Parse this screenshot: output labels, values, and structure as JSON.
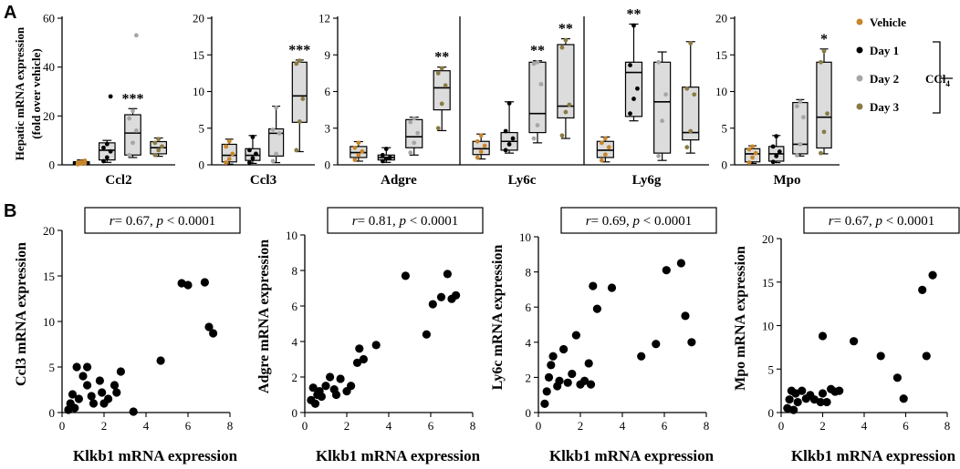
{
  "panels": {
    "a": "A",
    "b": "B"
  },
  "panel_a_ylabel": {
    "line1": "Hepatic mRNA expression",
    "line2": "(fold over vehicle)"
  },
  "legend": {
    "items": [
      {
        "label": "Vehicle",
        "color": "#c8862a"
      },
      {
        "label": "Day 1",
        "color": "#000000"
      },
      {
        "label": "Day 2",
        "color": "#a6a6a6"
      },
      {
        "label": "Day 3",
        "color": "#8a7b45"
      }
    ],
    "group_label": "CCl",
    "group_subscript": "4"
  },
  "colors": {
    "box_fill": "#dcdcdc",
    "point": "#000000"
  },
  "chart_data": [
    {
      "panel": "A",
      "type": "box",
      "title": "Ccl2",
      "ylim": [
        0,
        60
      ],
      "yticks": [
        0,
        20,
        40,
        60
      ],
      "groups": [
        {
          "name": "Vehicle",
          "q1": 0.4,
          "median": 0.8,
          "q3": 1.3,
          "min": 0.1,
          "max": 2.0,
          "points": [
            0.2,
            0.5,
            0.7,
            0.9,
            1.2,
            1.7
          ]
        },
        {
          "name": "Day 1",
          "q1": 2.0,
          "median": 6.0,
          "q3": 9.0,
          "min": 1.0,
          "max": 10.0,
          "points": [
            1.5,
            3.0,
            5.5,
            7.0,
            8.5,
            28.0
          ]
        },
        {
          "name": "Day 2",
          "q1": 4.0,
          "median": 13.0,
          "q3": 20.5,
          "min": 3.0,
          "max": 23.0,
          "points": [
            4.0,
            9.0,
            14.0,
            19.0,
            22.0,
            53.0
          ]
        },
        {
          "name": "Day 3",
          "q1": 4.5,
          "median": 7.0,
          "q3": 9.5,
          "min": 3.5,
          "max": 11.0,
          "points": [
            4.0,
            6.0,
            7.5,
            9.0,
            10.5
          ]
        }
      ],
      "significance": [
        {
          "group": "Day 2",
          "label": "***"
        }
      ]
    },
    {
      "panel": "A",
      "type": "box",
      "title": "Ccl3",
      "ylim": [
        0,
        20
      ],
      "yticks": [
        0,
        5,
        10,
        15,
        20
      ],
      "groups": [
        {
          "name": "Vehicle",
          "q1": 0.4,
          "median": 1.3,
          "q3": 2.8,
          "min": 0.1,
          "max": 3.5,
          "points": [
            0.3,
            0.8,
            1.5,
            2.5,
            3.2
          ]
        },
        {
          "name": "Day 1",
          "q1": 0.6,
          "median": 1.3,
          "q3": 2.2,
          "min": 0.2,
          "max": 4.0,
          "points": [
            0.3,
            0.9,
            1.5,
            2.0,
            3.8
          ]
        },
        {
          "name": "Day 2",
          "q1": 1.2,
          "median": 4.3,
          "q3": 4.9,
          "min": 0.3,
          "max": 8.0,
          "points": [
            0.5,
            1.5,
            4.3,
            4.8,
            7.8
          ]
        },
        {
          "name": "Day 3",
          "q1": 5.8,
          "median": 9.4,
          "q3": 14.0,
          "min": 1.8,
          "max": 14.3,
          "points": [
            2.0,
            5.9,
            9.0,
            13.8,
            14.2
          ]
        }
      ],
      "significance": [
        {
          "group": "Day 3",
          "label": "***"
        }
      ]
    },
    {
      "panel": "A",
      "type": "box",
      "title": "Adgre",
      "ylim": [
        0,
        12
      ],
      "yticks": [
        0,
        3,
        6,
        9,
        12
      ],
      "groups": [
        {
          "name": "Vehicle",
          "q1": 0.6,
          "median": 1.0,
          "q3": 1.5,
          "min": 0.3,
          "max": 1.9,
          "points": [
            0.4,
            0.8,
            1.1,
            1.4,
            1.8
          ]
        },
        {
          "name": "Day 1",
          "q1": 0.4,
          "median": 0.6,
          "q3": 0.8,
          "min": 0.2,
          "max": 1.4,
          "points": [
            0.3,
            0.5,
            0.6,
            0.8,
            1.3
          ]
        },
        {
          "name": "Day 2",
          "q1": 1.4,
          "median": 2.3,
          "q3": 3.7,
          "min": 0.8,
          "max": 3.9,
          "points": [
            1.0,
            1.8,
            2.6,
            3.5,
            3.8
          ]
        },
        {
          "name": "Day 3",
          "q1": 4.5,
          "median": 6.3,
          "q3": 7.7,
          "min": 2.8,
          "max": 8.0,
          "points": [
            3.0,
            5.0,
            6.5,
            7.5,
            7.9
          ]
        }
      ],
      "significance": [
        {
          "group": "Day 3",
          "label": "**"
        }
      ]
    },
    {
      "panel": "A",
      "type": "box",
      "title": "Ly6c",
      "ylim": [
        0,
        10
      ],
      "yticks": [],
      "groups": [
        {
          "name": "Vehicle",
          "q1": 0.7,
          "median": 1.1,
          "q3": 1.6,
          "min": 0.4,
          "max": 2.1,
          "points": [
            0.5,
            0.9,
            1.3,
            1.6,
            2.0
          ]
        },
        {
          "name": "Day 1",
          "q1": 1.0,
          "median": 1.6,
          "q3": 2.2,
          "min": 0.8,
          "max": 4.3,
          "points": [
            1.0,
            1.4,
            1.8,
            2.3,
            4.2
          ]
        },
        {
          "name": "Day 2",
          "q1": 2.2,
          "median": 3.5,
          "q3": 7.0,
          "min": 1.5,
          "max": 7.1,
          "points": [
            1.8,
            2.7,
            5.5,
            6.9,
            7.0
          ]
        },
        {
          "name": "Day 3",
          "q1": 3.2,
          "median": 4.0,
          "q3": 8.2,
          "min": 1.8,
          "max": 8.6,
          "points": [
            2.0,
            3.6,
            4.1,
            8.0,
            8.5
          ]
        }
      ],
      "significance": [
        {
          "group": "Day 2",
          "label": "**"
        },
        {
          "group": "Day 3",
          "label": "**"
        }
      ]
    },
    {
      "panel": "A",
      "type": "box",
      "title": "Ly6g",
      "ylim": [
        0,
        10
      ],
      "yticks": [],
      "groups": [
        {
          "name": "Vehicle",
          "q1": 0.5,
          "median": 1.0,
          "q3": 1.6,
          "min": 0.2,
          "max": 1.9,
          "points": [
            0.3,
            0.7,
            1.2,
            1.5,
            1.8
          ]
        },
        {
          "name": "Day 1",
          "q1": 3.3,
          "median": 6.3,
          "q3": 7.0,
          "min": 3.0,
          "max": 9.6,
          "points": [
            3.5,
            4.5,
            5.2,
            6.8,
            9.5
          ]
        },
        {
          "name": "Day 2",
          "q1": 0.8,
          "median": 4.3,
          "q3": 7.0,
          "min": 0.3,
          "max": 7.7,
          "points": [
            0.6,
            3.0,
            4.8,
            7.0
          ]
        },
        {
          "name": "Day 3",
          "q1": 1.7,
          "median": 2.2,
          "q3": 5.3,
          "min": 0.8,
          "max": 8.4,
          "points": [
            1.2,
            2.3,
            4.8,
            5.2,
            8.3
          ]
        }
      ],
      "significance": [
        {
          "group": "Day 1",
          "label": "**"
        }
      ]
    },
    {
      "panel": "A",
      "type": "box",
      "title": "Mpo",
      "ylim": [
        0,
        20
      ],
      "yticks": [
        0,
        5,
        10,
        15,
        20
      ],
      "groups": [
        {
          "name": "Vehicle",
          "q1": 0.4,
          "median": 1.5,
          "q3": 2.2,
          "min": 0.2,
          "max": 2.6,
          "points": [
            0.3,
            1.0,
            1.6,
            2.1,
            2.5
          ]
        },
        {
          "name": "Day 1",
          "q1": 0.5,
          "median": 1.5,
          "q3": 2.5,
          "min": 0.3,
          "max": 4.0,
          "points": [
            0.4,
            1.2,
            1.8,
            2.5,
            3.9
          ]
        },
        {
          "name": "Day 2",
          "q1": 1.5,
          "median": 2.8,
          "q3": 8.5,
          "min": 1.2,
          "max": 8.9,
          "points": [
            1.3,
            2.8,
            6.5,
            8.0,
            8.6
          ]
        },
        {
          "name": "Day 3",
          "q1": 2.3,
          "median": 6.5,
          "q3": 14.0,
          "min": 1.5,
          "max": 15.8,
          "points": [
            1.6,
            4.5,
            7.0,
            14.0,
            15.5
          ]
        }
      ],
      "significance": [
        {
          "group": "Day 3",
          "label": "*"
        }
      ]
    },
    {
      "panel": "B",
      "type": "scatter",
      "xlabel": "Klkb1 mRNA expression",
      "ylabel": "Ccl3 mRNA expression",
      "xlim": [
        0,
        8
      ],
      "xticks": [
        0,
        2,
        4,
        6,
        8
      ],
      "ylim": [
        0,
        20
      ],
      "yticks": [
        0,
        5,
        10,
        15,
        20
      ],
      "annotation": {
        "r": "0.67",
        "p": "0.0001"
      },
      "x": [
        0.3,
        0.4,
        0.5,
        0.6,
        0.8,
        1.0,
        1.2,
        1.4,
        1.5,
        1.8,
        1.9,
        2.0,
        2.2,
        2.5,
        2.6,
        2.8,
        3.4,
        0.7,
        1.2,
        4.7,
        5.7,
        6.0,
        6.8,
        7.0,
        7.2
      ],
      "y": [
        0.3,
        1.0,
        2.0,
        0.5,
        1.5,
        4.0,
        3.0,
        1.8,
        1.0,
        3.5,
        2.2,
        1.0,
        1.5,
        3.0,
        2.2,
        4.5,
        0.1,
        5.0,
        5.0,
        5.7,
        14.2,
        14.0,
        14.3,
        9.4,
        8.7
      ]
    },
    {
      "panel": "B",
      "type": "scatter",
      "xlabel": "Klkb1 mRNA expression",
      "ylabel": "Adgre mRNA expression",
      "xlim": [
        0,
        8
      ],
      "xticks": [
        0,
        2,
        4,
        6,
        8
      ],
      "ylim": [
        0,
        10
      ],
      "yticks": [
        0,
        2,
        4,
        6,
        8,
        10
      ],
      "annotation": {
        "r": "0.81",
        "p": "0.0001"
      },
      "x": [
        0.3,
        0.4,
        0.5,
        0.6,
        0.7,
        0.8,
        1.0,
        1.2,
        1.4,
        1.5,
        1.7,
        2.0,
        2.2,
        2.5,
        2.8,
        3.4,
        2.6,
        4.8,
        5.8,
        6.1,
        6.5,
        6.8,
        7.0,
        7.2
      ],
      "y": [
        0.7,
        1.4,
        0.5,
        1.0,
        1.2,
        0.9,
        1.5,
        2.0,
        1.3,
        1.0,
        1.9,
        1.2,
        1.5,
        2.8,
        3.0,
        3.8,
        3.6,
        7.7,
        4.4,
        6.1,
        6.5,
        7.8,
        6.4,
        6.6
      ]
    },
    {
      "panel": "B",
      "type": "scatter",
      "xlabel": "Klkb1 mRNA expression",
      "ylabel": "Ly6c mRNA expression",
      "xlim": [
        0,
        8
      ],
      "xticks": [
        0,
        2,
        4,
        6,
        8
      ],
      "ylim": [
        0,
        10
      ],
      "yticks": [
        0,
        2,
        4,
        6,
        8,
        10
      ],
      "annotation": {
        "r": "0.69",
        "p": "0.0001"
      },
      "x": [
        0.3,
        0.4,
        0.5,
        0.6,
        0.7,
        0.9,
        1.0,
        1.2,
        1.4,
        1.6,
        1.8,
        2.0,
        2.2,
        2.4,
        2.6,
        2.8,
        2.5,
        3.5,
        4.9,
        5.6,
        6.1,
        6.8,
        7.0,
        7.3
      ],
      "y": [
        0.5,
        1.2,
        2.0,
        2.7,
        3.2,
        1.5,
        1.8,
        3.6,
        1.7,
        2.2,
        4.4,
        1.6,
        1.8,
        2.8,
        7.2,
        5.9,
        1.6,
        7.1,
        3.2,
        3.9,
        8.1,
        8.5,
        5.5,
        4.0
      ]
    },
    {
      "panel": "B",
      "type": "scatter",
      "xlabel": "Klkb1 mRNA expression",
      "ylabel": "Mpo mRNA expression",
      "xlim": [
        0,
        8
      ],
      "xticks": [
        0,
        2,
        4,
        6,
        8
      ],
      "ylim": [
        0,
        20
      ],
      "yticks": [
        0,
        5,
        10,
        15,
        20
      ],
      "annotation": {
        "r": "0.67",
        "p": "0.0001"
      },
      "x": [
        0.3,
        0.4,
        0.5,
        0.6,
        0.7,
        0.8,
        1.0,
        1.2,
        1.4,
        1.6,
        1.9,
        2.0,
        2.2,
        2.4,
        2.6,
        2.8,
        2.0,
        3.5,
        4.8,
        5.6,
        5.9,
        6.8,
        7.0,
        7.3
      ],
      "y": [
        0.5,
        1.5,
        2.5,
        0.3,
        2.2,
        1.2,
        2.5,
        1.6,
        2.0,
        1.5,
        1.2,
        2.2,
        1.2,
        2.7,
        2.4,
        2.5,
        8.8,
        8.2,
        6.5,
        4.0,
        1.6,
        14.1,
        6.5,
        15.8
      ]
    }
  ]
}
